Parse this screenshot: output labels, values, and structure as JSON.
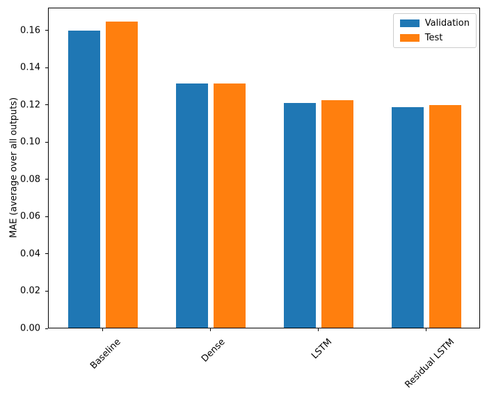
{
  "chart_data": {
    "type": "bar",
    "title": "",
    "categories": [
      "Baseline",
      "Dense",
      "LSTM",
      "Residual LSTM"
    ],
    "series": [
      {
        "name": "Validation",
        "color": "#1f77b4",
        "values": [
          0.1595,
          0.1313,
          0.1205,
          0.1185
        ]
      },
      {
        "name": "Test",
        "color": "#ff7f0e",
        "values": [
          0.1645,
          0.1313,
          0.122,
          0.1195
        ]
      }
    ],
    "xlabel": "",
    "ylabel": "MAE (average over all outputs)",
    "ylim": [
      0,
      0.1722
    ],
    "yticks": [
      0.0,
      0.02,
      0.04,
      0.06,
      0.08,
      0.1,
      0.12,
      0.14,
      0.16
    ],
    "ytick_labels": [
      "0.00",
      "0.02",
      "0.04",
      "0.06",
      "0.08",
      "0.10",
      "0.12",
      "0.14",
      "0.16"
    ],
    "xtick_rotation": 45,
    "grid": false,
    "legend": {
      "position": "upper right"
    },
    "colors": {
      "spine": "#000000",
      "background": "#ffffff",
      "legend_border": "#cccccc",
      "text": "#000000"
    }
  }
}
